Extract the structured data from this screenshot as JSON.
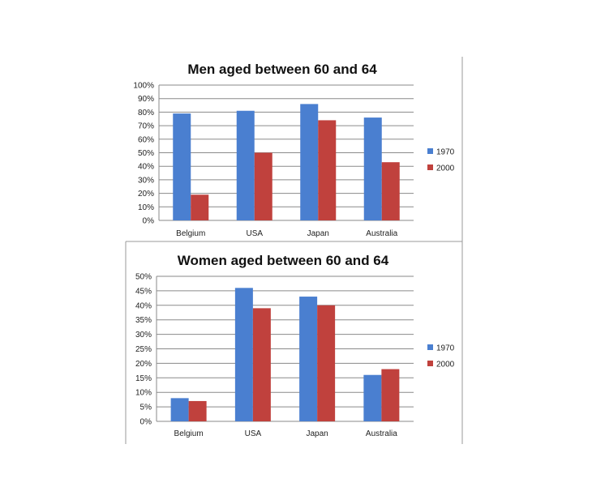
{
  "chart_data": [
    {
      "type": "bar",
      "title": "Men aged between 60 and 64",
      "categories": [
        "Belgium",
        "USA",
        "Japan",
        "Australia"
      ],
      "series": [
        {
          "name": "1970",
          "color": "#4a7fd0",
          "values": [
            79,
            81,
            86,
            76
          ]
        },
        {
          "name": "2000",
          "color": "#c0413d",
          "values": [
            19,
            50,
            74,
            43
          ]
        }
      ],
      "xlabel": "",
      "ylabel": "",
      "ylim": [
        0,
        100
      ],
      "yticks": [
        "0%",
        "10%",
        "20%",
        "30%",
        "40%",
        "50%",
        "60%",
        "70%",
        "80%",
        "90%",
        "100%"
      ],
      "grid": true,
      "legend_position": "right"
    },
    {
      "type": "bar",
      "title": "Women aged between 60 and 64",
      "categories": [
        "Belgium",
        "USA",
        "Japan",
        "Australia"
      ],
      "series": [
        {
          "name": "1970",
          "color": "#4a7fd0",
          "values": [
            8,
            46,
            43,
            16
          ]
        },
        {
          "name": "2000",
          "color": "#c0413d",
          "values": [
            7,
            39,
            40,
            18
          ]
        }
      ],
      "xlabel": "",
      "ylabel": "",
      "ylim": [
        0,
        50
      ],
      "yticks": [
        "0%",
        "5%",
        "10%",
        "15%",
        "20%",
        "25%",
        "30%",
        "35%",
        "40%",
        "45%",
        "50%"
      ],
      "grid": true,
      "legend_position": "right"
    }
  ]
}
